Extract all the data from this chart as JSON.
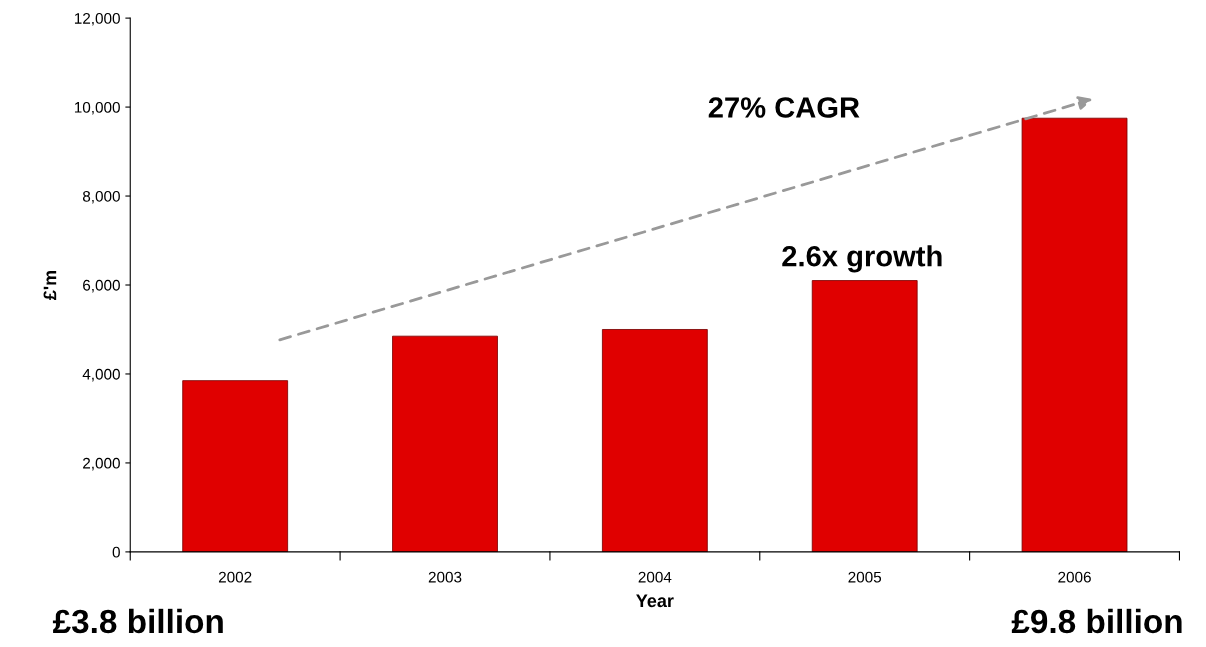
{
  "chart_data": {
    "type": "bar",
    "xlabel": "Year",
    "ylabel": "£'m",
    "categories": [
      "2002",
      "2003",
      "2004",
      "2005",
      "2006"
    ],
    "values": [
      3850,
      4850,
      5000,
      6100,
      9750
    ],
    "color": "#e00000",
    "ylim": [
      0,
      12000
    ],
    "yticks": [
      {
        "value": 0,
        "label": "0"
      },
      {
        "value": 2000,
        "label": "2,000"
      },
      {
        "value": 4000,
        "label": "4,000"
      },
      {
        "value": 6000,
        "label": "6,000"
      },
      {
        "value": 8000,
        "label": "8,000"
      },
      {
        "value": 10000,
        "label": "10,000"
      },
      {
        "value": 12000,
        "label": "12,000"
      }
    ],
    "annotations": [
      "27% CAGR",
      "2.6x growth",
      "£3.8 billion",
      "£9.8 billion"
    ],
    "grid": false,
    "legend": false
  }
}
